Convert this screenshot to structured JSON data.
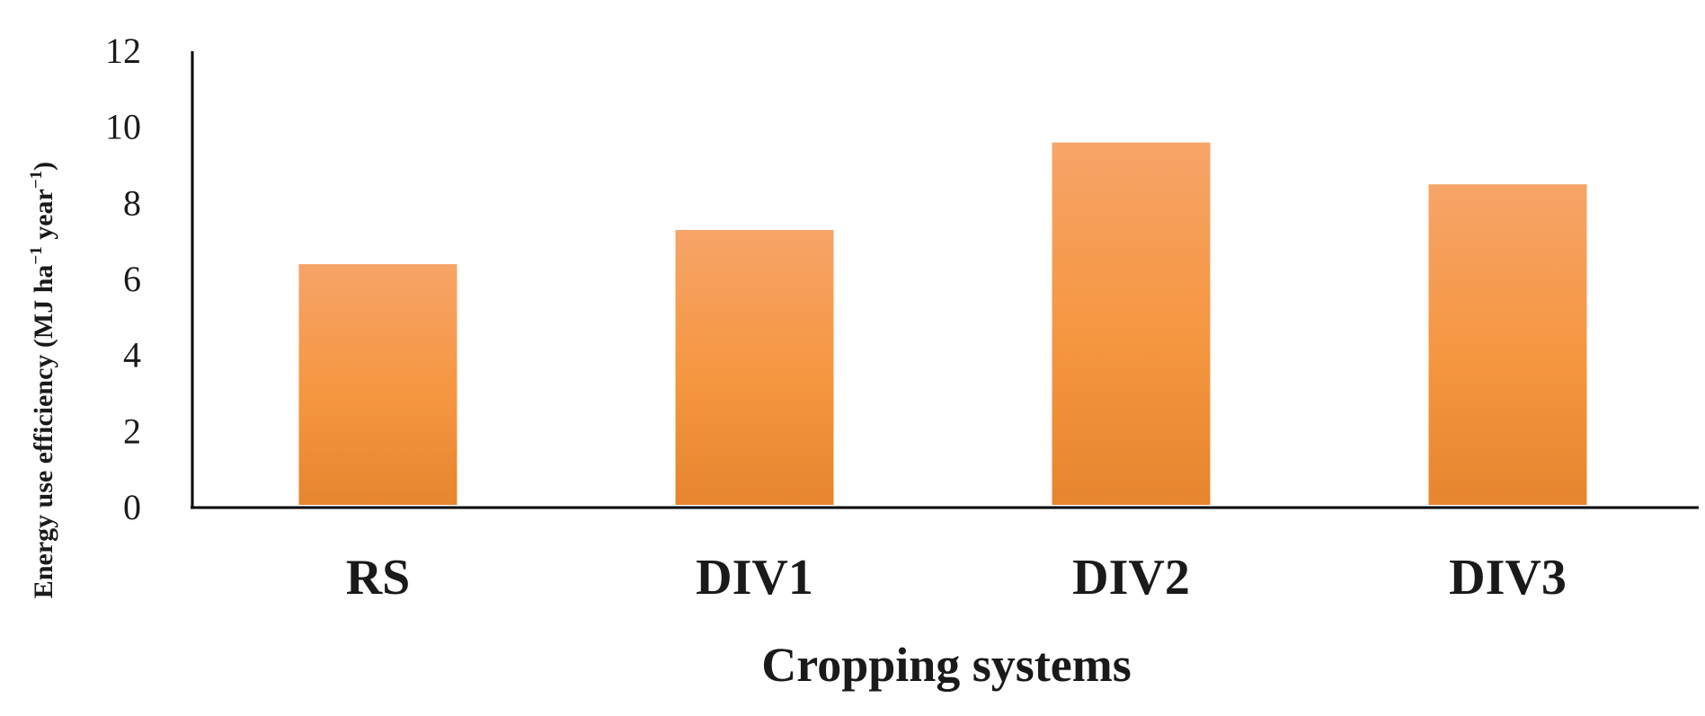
{
  "chart_data": {
    "type": "bar",
    "categories": [
      "RS",
      "DIV1",
      "DIV2",
      "DIV3"
    ],
    "values": [
      6.4,
      7.3,
      9.6,
      8.5
    ],
    "title": "",
    "xlabel": "Cropping systems",
    "ylabel_main": "Energy use efficiency (MJ ha",
    "ylabel_sup1": "−1",
    "ylabel_mid": " year",
    "ylabel_sup2": "−1",
    "ylabel_end": ")",
    "ylim": [
      0,
      12
    ],
    "yticks": [
      0,
      2,
      4,
      6,
      8,
      10,
      12
    ],
    "grid": false,
    "legend": "none",
    "colors": {
      "bar_top": "#f7a468",
      "bar_mid": "#f59640",
      "bar_bottom": "#e6852e",
      "axis": "#000000"
    }
  }
}
